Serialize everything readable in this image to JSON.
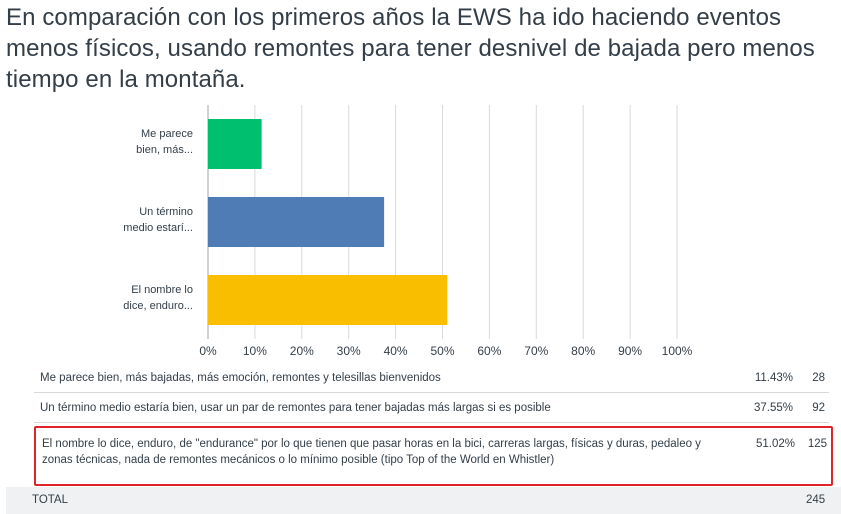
{
  "question": "En comparación con los primeros años la EWS ha ido haciendo eventos menos físicos, usando remontes para tener desnivel de bajada pero menos tiempo en la montaña.",
  "chart_data": {
    "type": "bar",
    "orientation": "horizontal",
    "categories": [
      [
        "Me parece",
        "bien, más..."
      ],
      [
        "Un término",
        "medio estarí..."
      ],
      [
        "El nombre lo",
        "dice, enduro..."
      ]
    ],
    "values": [
      11.43,
      37.55,
      51.02
    ],
    "colors": [
      "#00bf6f",
      "#507cb6",
      "#f9be00"
    ],
    "xlim": [
      0,
      100
    ],
    "xticks": [
      "0%",
      "10%",
      "20%",
      "30%",
      "40%",
      "50%",
      "60%",
      "70%",
      "80%",
      "90%",
      "100%"
    ],
    "grid": true
  },
  "summary": {
    "rows": [
      {
        "answer": "Me parece bien, más bajadas, más emoción, remontes y telesillas bienvenidos",
        "percent": "11.43%",
        "count": "28"
      },
      {
        "answer": "Un término medio estaría bien, usar un par de remontes para tener bajadas más largas si es posible",
        "percent": "37.55%",
        "count": "92"
      },
      {
        "answer": "El nombre lo dice, enduro, de \"endurance\" por lo que tienen que pasar horas en la bici, carreras largas, físicas y duras, pedaleo y zonas técnicas, nada de remontes mecánicos o lo mínimo posible (tipo Top of the World en Whistler)",
        "percent": "51.02%",
        "count": "125",
        "highlighted": true
      }
    ],
    "total_label": "TOTAL",
    "total_count": "245"
  }
}
